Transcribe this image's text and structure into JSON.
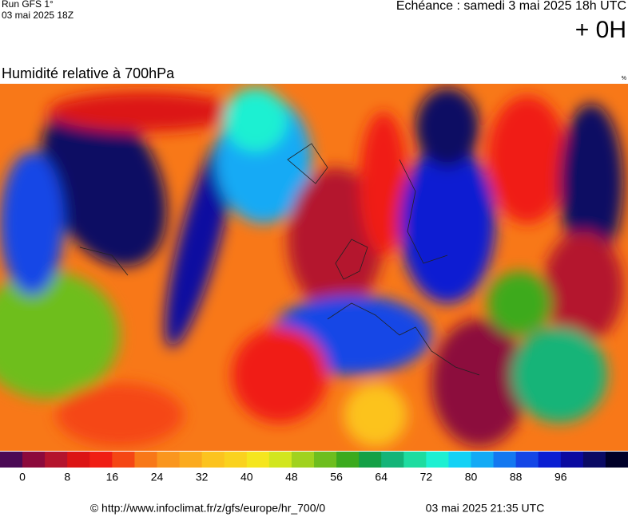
{
  "header": {
    "run": "Run GFS 1°",
    "date": "03 mai 2025 18Z",
    "echeance": "Echéance : samedi 3 mai 2025 18h UTC",
    "offset": "+ 0H"
  },
  "title": "Humidité relative à 700hPa",
  "unit": "%",
  "legend": {
    "colors": [
      "#4b0a55",
      "#8c0a3c",
      "#b4142d",
      "#dc1414",
      "#f01e14",
      "#f54614",
      "#f87818",
      "#fa961e",
      "#fbaa1e",
      "#fcc31e",
      "#fad21e",
      "#f5e61e",
      "#d2e61e",
      "#a0d21e",
      "#6ebe1e",
      "#3caa1e",
      "#14a046",
      "#14b478",
      "#1edca0",
      "#1ef0d2",
      "#14d2f5",
      "#14aaf5",
      "#1478f0",
      "#1446e6",
      "#0a1ed2",
      "#0a0aa0",
      "#0a0a64",
      "#000028"
    ],
    "ticks": [
      0,
      8,
      16,
      24,
      32,
      40,
      48,
      56,
      64,
      72,
      80,
      88,
      96
    ]
  },
  "footer": {
    "url": "© http://www.infoclimat.fr/z/gfs/europe/hr_700/0",
    "timestamp": "03 mai 2025 21:35 UTC"
  }
}
